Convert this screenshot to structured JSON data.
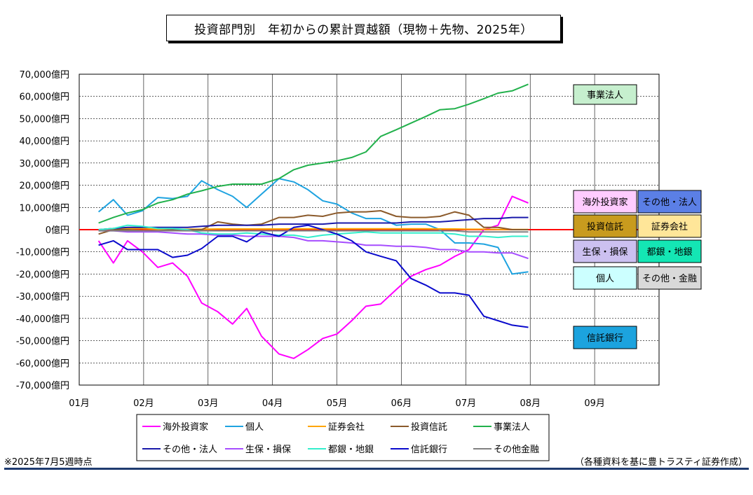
{
  "title": "投資部門別　年初からの累計買越額（現物＋先物、2025年）",
  "note_left": "※2025年7月5週時点",
  "note_right": "（各種資料を基に豊トラスティ証券作成）",
  "chart_data": {
    "type": "line",
    "ylim": [
      -70000,
      70000
    ],
    "y_ticks": [
      70000,
      60000,
      50000,
      40000,
      30000,
      20000,
      10000,
      0,
      -10000,
      -20000,
      -30000,
      -40000,
      -50000,
      -60000,
      -70000
    ],
    "y_tick_labels": [
      "70,000億円",
      "60,000億円",
      "50,000億円",
      "40,000億円",
      "30,000億円",
      "20,000億円",
      "10,000億円",
      "0億円",
      "-10,000億円",
      "-20,000億円",
      "-30,000億円",
      "-40,000億円",
      "-50,000億円",
      "-60,000億円",
      "-70,000億円"
    ],
    "x_tick_labels": [
      "01月",
      "02月",
      "03月",
      "04月",
      "05月",
      "06月",
      "07月",
      "08月",
      "09月"
    ],
    "x": [
      "01/10",
      "01/17",
      "01/24",
      "01/31",
      "02/07",
      "02/14",
      "02/21",
      "02/28",
      "03/07",
      "03/14",
      "03/21",
      "03/28",
      "04/04",
      "04/11",
      "04/18",
      "04/25",
      "05/02",
      "05/09",
      "05/16",
      "05/23",
      "05/30",
      "06/06",
      "06/13",
      "06/20",
      "06/27",
      "07/04",
      "07/11",
      "07/18",
      "07/25",
      "08/01"
    ],
    "x_numeric": [
      1.3,
      1.53,
      1.75,
      1.98,
      2.22,
      2.45,
      2.68,
      2.9,
      3.15,
      3.38,
      3.6,
      3.83,
      4.1,
      4.33,
      4.55,
      4.78,
      5.0,
      5.23,
      5.45,
      5.68,
      5.92,
      6.15,
      6.38,
      6.6,
      6.83,
      7.05,
      7.28,
      7.5,
      7.72,
      7.97
    ],
    "grid": true,
    "zero_line_color": "#ff0000",
    "series": [
      {
        "name": "海外投資家",
        "color": "#ff00ff",
        "values": [
          -5000,
          -15000,
          -5000,
          -10000,
          -17000,
          -15000,
          -21000,
          -33000,
          -37000,
          -42500,
          -35500,
          -48000,
          -56000,
          -58000,
          -54000,
          -49000,
          -47000,
          -41000,
          -34500,
          -33500,
          -27000,
          -21000,
          -18000,
          -16000,
          -12000,
          -9000,
          0,
          2000,
          15000,
          12000
        ]
      },
      {
        "name": "個人",
        "color": "#1fa3e0",
        "values": [
          8000,
          13500,
          6500,
          8500,
          14500,
          14000,
          15000,
          22000,
          18000,
          15000,
          10000,
          16000,
          23000,
          21500,
          18000,
          13000,
          11500,
          7500,
          5000,
          5000,
          2000,
          2500,
          2500,
          0,
          -6000,
          -6000,
          -6500,
          -8000,
          -20000,
          -19000
        ]
      },
      {
        "name": "証券会社",
        "color": "#ffa500",
        "values": [
          0,
          500,
          500,
          500,
          200,
          200,
          200,
          200,
          300,
          300,
          300,
          300,
          300,
          400,
          400,
          400,
          400,
          400,
          400,
          400,
          400,
          400,
          400,
          300,
          300,
          200,
          200,
          100,
          100,
          100
        ]
      },
      {
        "name": "投資信託",
        "color": "#8b5a2b",
        "values": [
          -2000,
          0,
          0,
          -500,
          -500,
          0,
          0,
          0,
          3500,
          2500,
          2000,
          2500,
          5500,
          5500,
          6500,
          6000,
          7500,
          8000,
          8000,
          8500,
          6000,
          5500,
          5500,
          6000,
          8000,
          6500,
          1000,
          1000,
          0,
          0
        ]
      },
      {
        "name": "事業法人",
        "color": "#22b14c",
        "values": [
          3000,
          5500,
          7500,
          9000,
          12000,
          13500,
          16000,
          17500,
          19500,
          20500,
          20500,
          20500,
          23000,
          27000,
          29000,
          30000,
          31000,
          32500,
          35000,
          42000,
          45000,
          48000,
          51000,
          54000,
          54500,
          56500,
          59000,
          61500,
          62500,
          65500
        ]
      },
      {
        "name": "その他・法人",
        "color": "#1a1aaa",
        "values": [
          0,
          500,
          1000,
          1000,
          1000,
          1000,
          1000,
          1500,
          2000,
          2000,
          2000,
          2000,
          2500,
          2500,
          2500,
          2500,
          3000,
          3000,
          3000,
          3000,
          3000,
          3500,
          3500,
          3500,
          4000,
          4500,
          5000,
          5000,
          5500,
          5500
        ]
      },
      {
        "name": "生保・損保",
        "color": "#a64dff",
        "values": [
          -500,
          -500,
          -1000,
          -1000,
          -1000,
          -1500,
          -2000,
          -2000,
          -2500,
          -2500,
          -3000,
          -3000,
          -3000,
          -3500,
          -5000,
          -5000,
          -5500,
          -6000,
          -7000,
          -7000,
          -7500,
          -7500,
          -8000,
          -9000,
          -9000,
          -10000,
          -10000,
          -10500,
          -10500,
          -13000
        ]
      },
      {
        "name": "都銀・地銀",
        "color": "#33eecc",
        "values": [
          0,
          500,
          2000,
          1500,
          500,
          500,
          0,
          -1500,
          -2000,
          -2000,
          -1500,
          -2000,
          -2500,
          -2500,
          -3500,
          -2500,
          -2000,
          -1500,
          -1000,
          -1500,
          -1500,
          -1500,
          -1500,
          -1500,
          -2000,
          -3000,
          -3000,
          -3500,
          -3000,
          -3000
        ]
      },
      {
        "name": "信託銀行",
        "color": "#0a0acc",
        "values": [
          -7000,
          -5000,
          -9000,
          -9000,
          -9000,
          -12500,
          -11500,
          -8500,
          -3000,
          -3000,
          -5500,
          -1000,
          -3000,
          1000,
          2000,
          0,
          -2000,
          -5000,
          -10000,
          -12000,
          -14000,
          -22000,
          -25000,
          -28500,
          -28500,
          -29500,
          -39000,
          -41000,
          -43000,
          -44000
        ]
      },
      {
        "name": "その他金融",
        "color": "#808080",
        "values": [
          -500,
          -500,
          -500,
          -500,
          -500,
          -500,
          -500,
          -500,
          -500,
          -500,
          -500,
          -500,
          -500,
          -500,
          -500,
          -500,
          -500,
          -500,
          -500,
          -500,
          -500,
          -500,
          -500,
          -500,
          -500,
          -1000,
          -1000,
          -1000,
          -1000,
          -1000
        ]
      }
    ],
    "labels": [
      {
        "text": "事業法人",
        "bg": "#c6efce",
        "series": "事業法人"
      },
      {
        "text": "海外投資家",
        "bg": "#ffccff",
        "series": "海外投資家"
      },
      {
        "text": "その他・法人",
        "bg": "#5b7fe6",
        "series": "その他・法人"
      },
      {
        "text": "投資信託",
        "bg": "#c89b1e",
        "series": "投資信託"
      },
      {
        "text": "証券会社",
        "bg": "#ffe699",
        "series": "証券会社"
      },
      {
        "text": "生保・損保",
        "bg": "#ccc0f0",
        "series": "生保・損保"
      },
      {
        "text": "都銀・地銀",
        "bg": "#14e6b4",
        "series": "都銀・地銀"
      },
      {
        "text": "個人",
        "bg": "#ccffff",
        "series": "個人"
      },
      {
        "text": "その他・金融",
        "bg": "#d9d9d9",
        "series": "その他金融"
      },
      {
        "text": "信託銀行",
        "bg": "#1ca3de",
        "series": "信託銀行"
      }
    ]
  }
}
